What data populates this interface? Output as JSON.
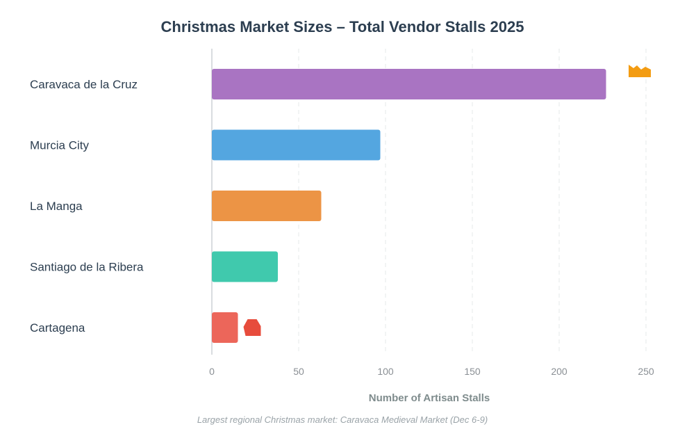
{
  "chart_data": {
    "type": "bar",
    "orientation": "horizontal",
    "title": "Christmas Market Sizes – Total Vendor Stalls 2025",
    "categories": [
      "Caravaca de la Cruz",
      "Murcia City",
      "La Manga",
      "Santiago de la Ribera",
      "Cartagena"
    ],
    "values": [
      227,
      97,
      63,
      38,
      15
    ],
    "colors": [
      "#a974c2",
      "#54a6e0",
      "#ec9445",
      "#40c9ad",
      "#ec665a"
    ],
    "xlabel": "Number of Artisan Stalls",
    "ylabel": "",
    "xlim": [
      0,
      250
    ],
    "xticks": [
      0,
      50,
      100,
      150,
      200,
      250
    ],
    "grid": "vertical dashed",
    "legend": "none",
    "annotations": [
      {
        "category": "Caravaca de la Cruz",
        "icon": "crown-icon",
        "color": "#f39c12"
      },
      {
        "category": "Cartagena",
        "icon": "house-icon",
        "color": "#e74c3c"
      }
    ],
    "caption": "Largest regional Christmas market: Caravaca Medieval Market (Dec 6-9)"
  }
}
